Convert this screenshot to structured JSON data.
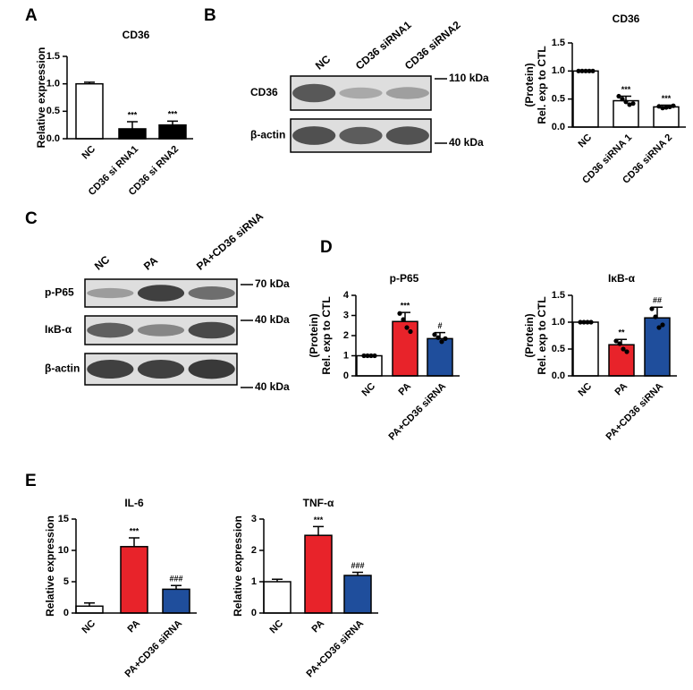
{
  "panels": [
    "A",
    "B",
    "C",
    "D",
    "E"
  ],
  "blots": [
    {
      "lanes": [
        "NC",
        "CD36 siRNA1",
        "CD36 siRNA2"
      ],
      "rows": [
        "CD36",
        "β-actin"
      ],
      "markers": [
        "110 kDa",
        "40 kDa"
      ]
    },
    {
      "lanes": [
        "NC",
        "PA",
        "PA+CD36 siRNA"
      ],
      "rows": [
        "p-P65",
        "IκB-α",
        "β-actin"
      ],
      "markers": [
        "70 kDa",
        "40 kDa",
        "40 kDa"
      ]
    }
  ],
  "chart_data": [
    {
      "type": "bar",
      "title": "CD36",
      "ylabel": [
        "Relative expression"
      ],
      "categories": [
        "NC",
        "CD36 si RNA1",
        "CD36 si RNA2"
      ],
      "values": [
        1.0,
        0.18,
        0.25
      ],
      "errors": [
        0.03,
        0.13,
        0.07
      ],
      "colors": [
        "#ffffff",
        "#000000",
        "#000000"
      ],
      "significance": [
        null,
        "***",
        "***"
      ],
      "ylim": [
        0,
        1.5
      ],
      "yticks": [
        {
          "value": 0,
          "label": "0.0"
        },
        0.5,
        {
          "value": 1,
          "label": "1.0"
        },
        1.5
      ]
    },
    {
      "type": "bar",
      "title": "CD36",
      "ylabel": [
        "(Protein)",
        "Rel. exp to CTL"
      ],
      "categories": [
        "NC",
        "CD36 siRNA 1",
        "CD36 siRNA 2"
      ],
      "values": [
        1.0,
        0.47,
        0.36
      ],
      "errors": [
        0.01,
        0.08,
        0.03
      ],
      "points": [
        [
          1,
          1,
          1,
          1,
          1
        ],
        [
          0.55,
          0.5,
          0.45,
          0.4,
          0.42
        ],
        [
          0.37,
          0.34,
          0.35,
          0.36,
          0.38
        ]
      ],
      "colors": [
        "#ffffff",
        "#ffffff",
        "#ffffff"
      ],
      "significance": [
        null,
        "***",
        "***"
      ],
      "ylim": [
        0,
        1.5
      ],
      "yticks": [
        {
          "value": 0,
          "label": "0.0"
        },
        0.5,
        {
          "value": 1,
          "label": "1.0"
        },
        1.5
      ]
    },
    {
      "type": "bar",
      "title": "p-P65",
      "ylabel": [
        "(Protein)",
        "Rel. exp to CTL"
      ],
      "categories": [
        "NC",
        "PA",
        "PA+CD36 siRNA"
      ],
      "values": [
        1.0,
        2.7,
        1.85
      ],
      "errors": [
        0.03,
        0.45,
        0.3
      ],
      "points": [
        [
          1,
          1,
          1,
          1
        ],
        [
          3.1,
          2.8,
          2.4,
          2.2
        ],
        [
          2.05,
          1.9,
          1.7,
          1.85
        ]
      ],
      "colors": [
        "#ffffff",
        "#e8232a",
        "#1f4e9c"
      ],
      "significance": [
        null,
        "***",
        "#"
      ],
      "ylim": [
        0,
        4
      ],
      "yticks": [
        0,
        1,
        2,
        3,
        4
      ]
    },
    {
      "type": "bar",
      "title": "IκB-α",
      "ylabel": [
        "(Protein)",
        "Rel. exp to CTL"
      ],
      "categories": [
        "NC",
        "PA",
        "PA+CD36 siRNA"
      ],
      "values": [
        1.0,
        0.58,
        1.08
      ],
      "errors": [
        0.01,
        0.1,
        0.2
      ],
      "points": [
        [
          1,
          1,
          1,
          1
        ],
        [
          0.65,
          0.6,
          0.5,
          0.45
        ],
        [
          1.25,
          1.1,
          0.9,
          0.95
        ]
      ],
      "colors": [
        "#ffffff",
        "#e8232a",
        "#1f4e9c"
      ],
      "significance": [
        null,
        "**",
        "##"
      ],
      "ylim": [
        0,
        1.5
      ],
      "yticks": [
        {
          "value": 0,
          "label": "0.0"
        },
        0.5,
        {
          "value": 1,
          "label": "1.0"
        },
        1.5
      ]
    },
    {
      "type": "bar",
      "title": "IL-6",
      "ylabel": [
        "Relative expression"
      ],
      "categories": [
        "NC",
        "PA",
        "PA+CD36 siRNA"
      ],
      "values": [
        1.1,
        10.6,
        3.8
      ],
      "errors": [
        0.5,
        1.4,
        0.6
      ],
      "colors": [
        "#ffffff",
        "#e8232a",
        "#1f4e9c"
      ],
      "significance": [
        null,
        "***",
        "###"
      ],
      "ylim": [
        0,
        15
      ],
      "yticks": [
        0,
        5,
        10,
        15
      ]
    },
    {
      "type": "bar",
      "title": "TNF-α",
      "ylabel": [
        "Relative expression"
      ],
      "categories": [
        "NC",
        "PA",
        "PA+CD36 siRNA"
      ],
      "values": [
        1.0,
        2.48,
        1.2
      ],
      "errors": [
        0.08,
        0.28,
        0.1
      ],
      "colors": [
        "#ffffff",
        "#e8232a",
        "#1f4e9c"
      ],
      "significance": [
        null,
        "***",
        "###"
      ],
      "ylim": [
        0,
        3
      ],
      "yticks": [
        0,
        1,
        2,
        3
      ]
    }
  ]
}
